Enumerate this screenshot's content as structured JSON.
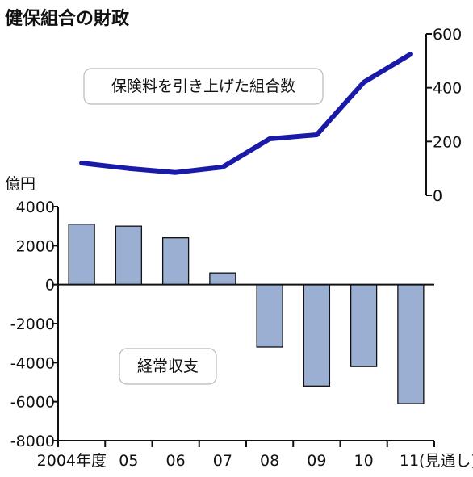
{
  "chart_data": {
    "title": "健保組合の財政",
    "categories": [
      "2004年度",
      "05",
      "06",
      "07",
      "08",
      "09",
      "10",
      "11"
    ],
    "x_suffix": "(見通し)",
    "bar": {
      "type": "bar",
      "name": "経常収支",
      "unit": "億円",
      "values": [
        3100,
        3000,
        2400,
        600,
        -3200,
        -5200,
        -4200,
        -6100
      ],
      "ylim": [
        -8000,
        4000
      ],
      "yticks": [
        "4000",
        "2000",
        "0",
        "-2000",
        "-4000",
        "-6000",
        "-8000"
      ],
      "color": "#9aafd1"
    },
    "line": {
      "type": "line",
      "name": "保険料を引き上げた組合数",
      "values": [
        120,
        100,
        85,
        105,
        210,
        225,
        420,
        525
      ],
      "ylim": [
        0,
        600
      ],
      "yticks": [
        "600",
        "400",
        "200",
        "0"
      ],
      "color": "#1a1aa8"
    }
  }
}
